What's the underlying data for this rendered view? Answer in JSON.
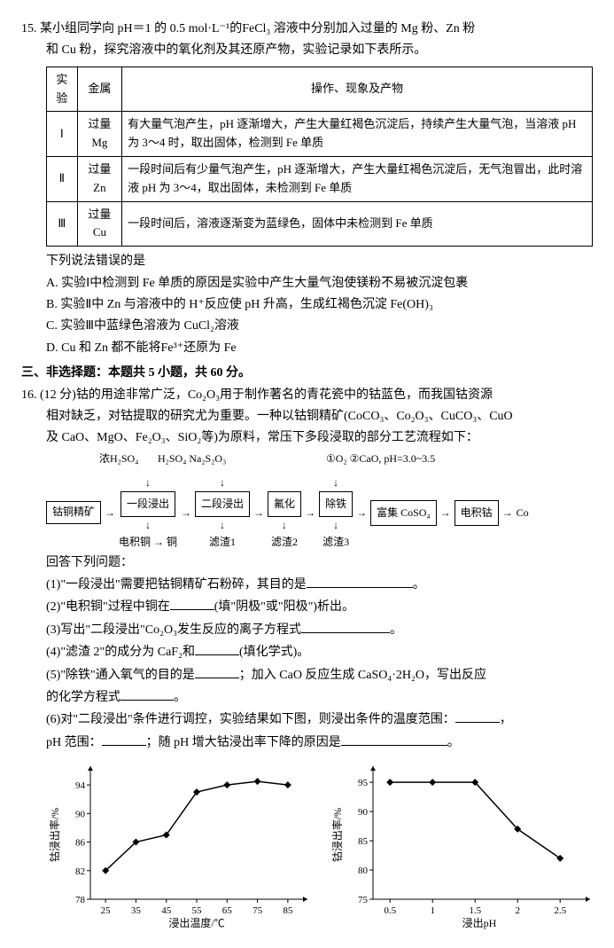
{
  "q15": {
    "number": "15.",
    "stem_l1": "某小组同学向 pH＝1 的 0.5 mol·L⁻¹的FeCl₃ 溶液中分别加入过量的 Mg 粉、Zn 粉",
    "stem_l2": "和 Cu 粉，探究溶液中的氧化剂及其还原产物，实验记录如下表所示。",
    "table": {
      "h1": "实验",
      "h2": "金属",
      "h3": "操作、现象及产物",
      "r1c1": "Ⅰ",
      "r1c2": "过量 Mg",
      "r1c3": "有大量气泡产生，pH 逐渐增大，产生大量红褐色沉淀后，持续产生大量气泡，当溶液 pH 为 3～4 时，取出固体，检测到 Fe 单质",
      "r2c1": "Ⅱ",
      "r2c2": "过量 Zn",
      "r2c3": "一段时间后有少量气泡产生，pH 逐渐增大，产生大量红褐色沉淀后，无气泡冒出，此时溶液 pH 为 3～4，取出固体，未检测到 Fe 单质",
      "r3c1": "Ⅲ",
      "r3c2": "过量 Cu",
      "r3c3": "一段时间后，溶液逐渐变为蓝绿色，固体中未检测到 Fe 单质"
    },
    "post": "下列说法错误的是",
    "A": "A. 实验Ⅰ中检测到 Fe 单质的原因是实验中产生大量气泡使镁粉不易被沉淀包裹",
    "B": "B. 实验Ⅱ中 Zn 与溶液中的 H⁺反应使 pH 升高，生成红褐色沉淀 Fe(OH)₃",
    "C": "C. 实验Ⅲ中蓝绿色溶液为 CuCl₂溶液",
    "D": "D. Cu 和 Zn 都不能将Fe³⁺还原为 Fe"
  },
  "section": "三、非选择题：本题共 5 小题，共 60 分。",
  "q16": {
    "number": "16.",
    "stem_l1": "(12 分)钴的用途非常广泛，Co₂O₃用于制作著名的青花瓷中的钴蓝色，而我国钴资源",
    "stem_l2": "相对缺乏，对钴提取的研究尤为重要。一种以钴铜精矿(CoCO₃、Co₂O₃、CuCO₃、CuO",
    "stem_l3": "及 CaO、MgO、Fe₂O₃、SiO₂等)为原料，常压下多段浸取的部分工艺流程如下：",
    "flow_top": {
      "a": "浓H₂SO₄",
      "b": "H₂SO₄  Na₂S₂O₃",
      "c": "①O₂   ②CaO, pH=3.0~3.5"
    },
    "flow": {
      "start": "钴铜精矿",
      "b1": "一段浸出",
      "b2": "二段浸出",
      "b3": "氟化",
      "b4": "除铁",
      "b5": "富集 CoSO₄",
      "b6": "电积钴",
      "end": "Co",
      "d1": "电积铜 → 铜",
      "d2": "滤渣1",
      "d3": "滤渣2",
      "d4": "滤渣3"
    },
    "answer": "回答下列问题：",
    "p1a": "(1)\"一段浸出\"需要把钴铜精矿石粉碎，其目的是",
    "p1b": "。",
    "p2a": "(2)\"电积铜\"过程中铜在",
    "p2b": "(填\"阴极\"或\"阳极\")析出。",
    "p3a": "(3)写出\"二段浸出\"Co₂O₃发生反应的离子方程式",
    "p3b": "。",
    "p4a": "(4)\"滤渣 2\"的成分为 CaF₂和",
    "p4b": "(填化学式)。",
    "p5a": "(5)\"除铁\"通入氧气的目的是",
    "p5b": "；加入 CaO 反应生成 CaSO₄·2H₂O，写出反应",
    "p5c": "的化学方程式",
    "p5d": "。",
    "p6a": "(6)对\"二段浸出\"条件进行调控，实验结果如下图，则浸出条件的温度范围：",
    "p6b": "，",
    "p6c": "pH 范围：",
    "p6d": "；随 pH 增大钴浸出率下降的原因是",
    "p6e": "。"
  },
  "chart1": {
    "ylabel": "钴浸出率/%",
    "xlabel": "浸出温度/℃",
    "yticks": [
      "78",
      "82",
      "86",
      "90",
      "94"
    ],
    "xticks": [
      "25",
      "35",
      "45",
      "55",
      "65",
      "75",
      "85"
    ],
    "points": [
      [
        25,
        82
      ],
      [
        35,
        86
      ],
      [
        45,
        87
      ],
      [
        55,
        93
      ],
      [
        65,
        94
      ],
      [
        75,
        94.5
      ],
      [
        85,
        94
      ]
    ],
    "ylim": [
      78,
      96
    ],
    "xlim": [
      20,
      90
    ],
    "line_color": "#000",
    "marker": "diamond"
  },
  "chart2": {
    "ylabel": "钴浸出率/%",
    "xlabel": "浸出pH",
    "yticks": [
      "75",
      "80",
      "85",
      "90",
      "95"
    ],
    "xticks": [
      "0.5",
      "1",
      "1.5",
      "2",
      "2.5"
    ],
    "points": [
      [
        0.5,
        95
      ],
      [
        1,
        95
      ],
      [
        1.5,
        95
      ],
      [
        2,
        87
      ],
      [
        2.5,
        82
      ]
    ],
    "ylim": [
      75,
      97
    ],
    "xlim": [
      0.3,
      2.8
    ],
    "line_color": "#000",
    "marker": "diamond"
  }
}
